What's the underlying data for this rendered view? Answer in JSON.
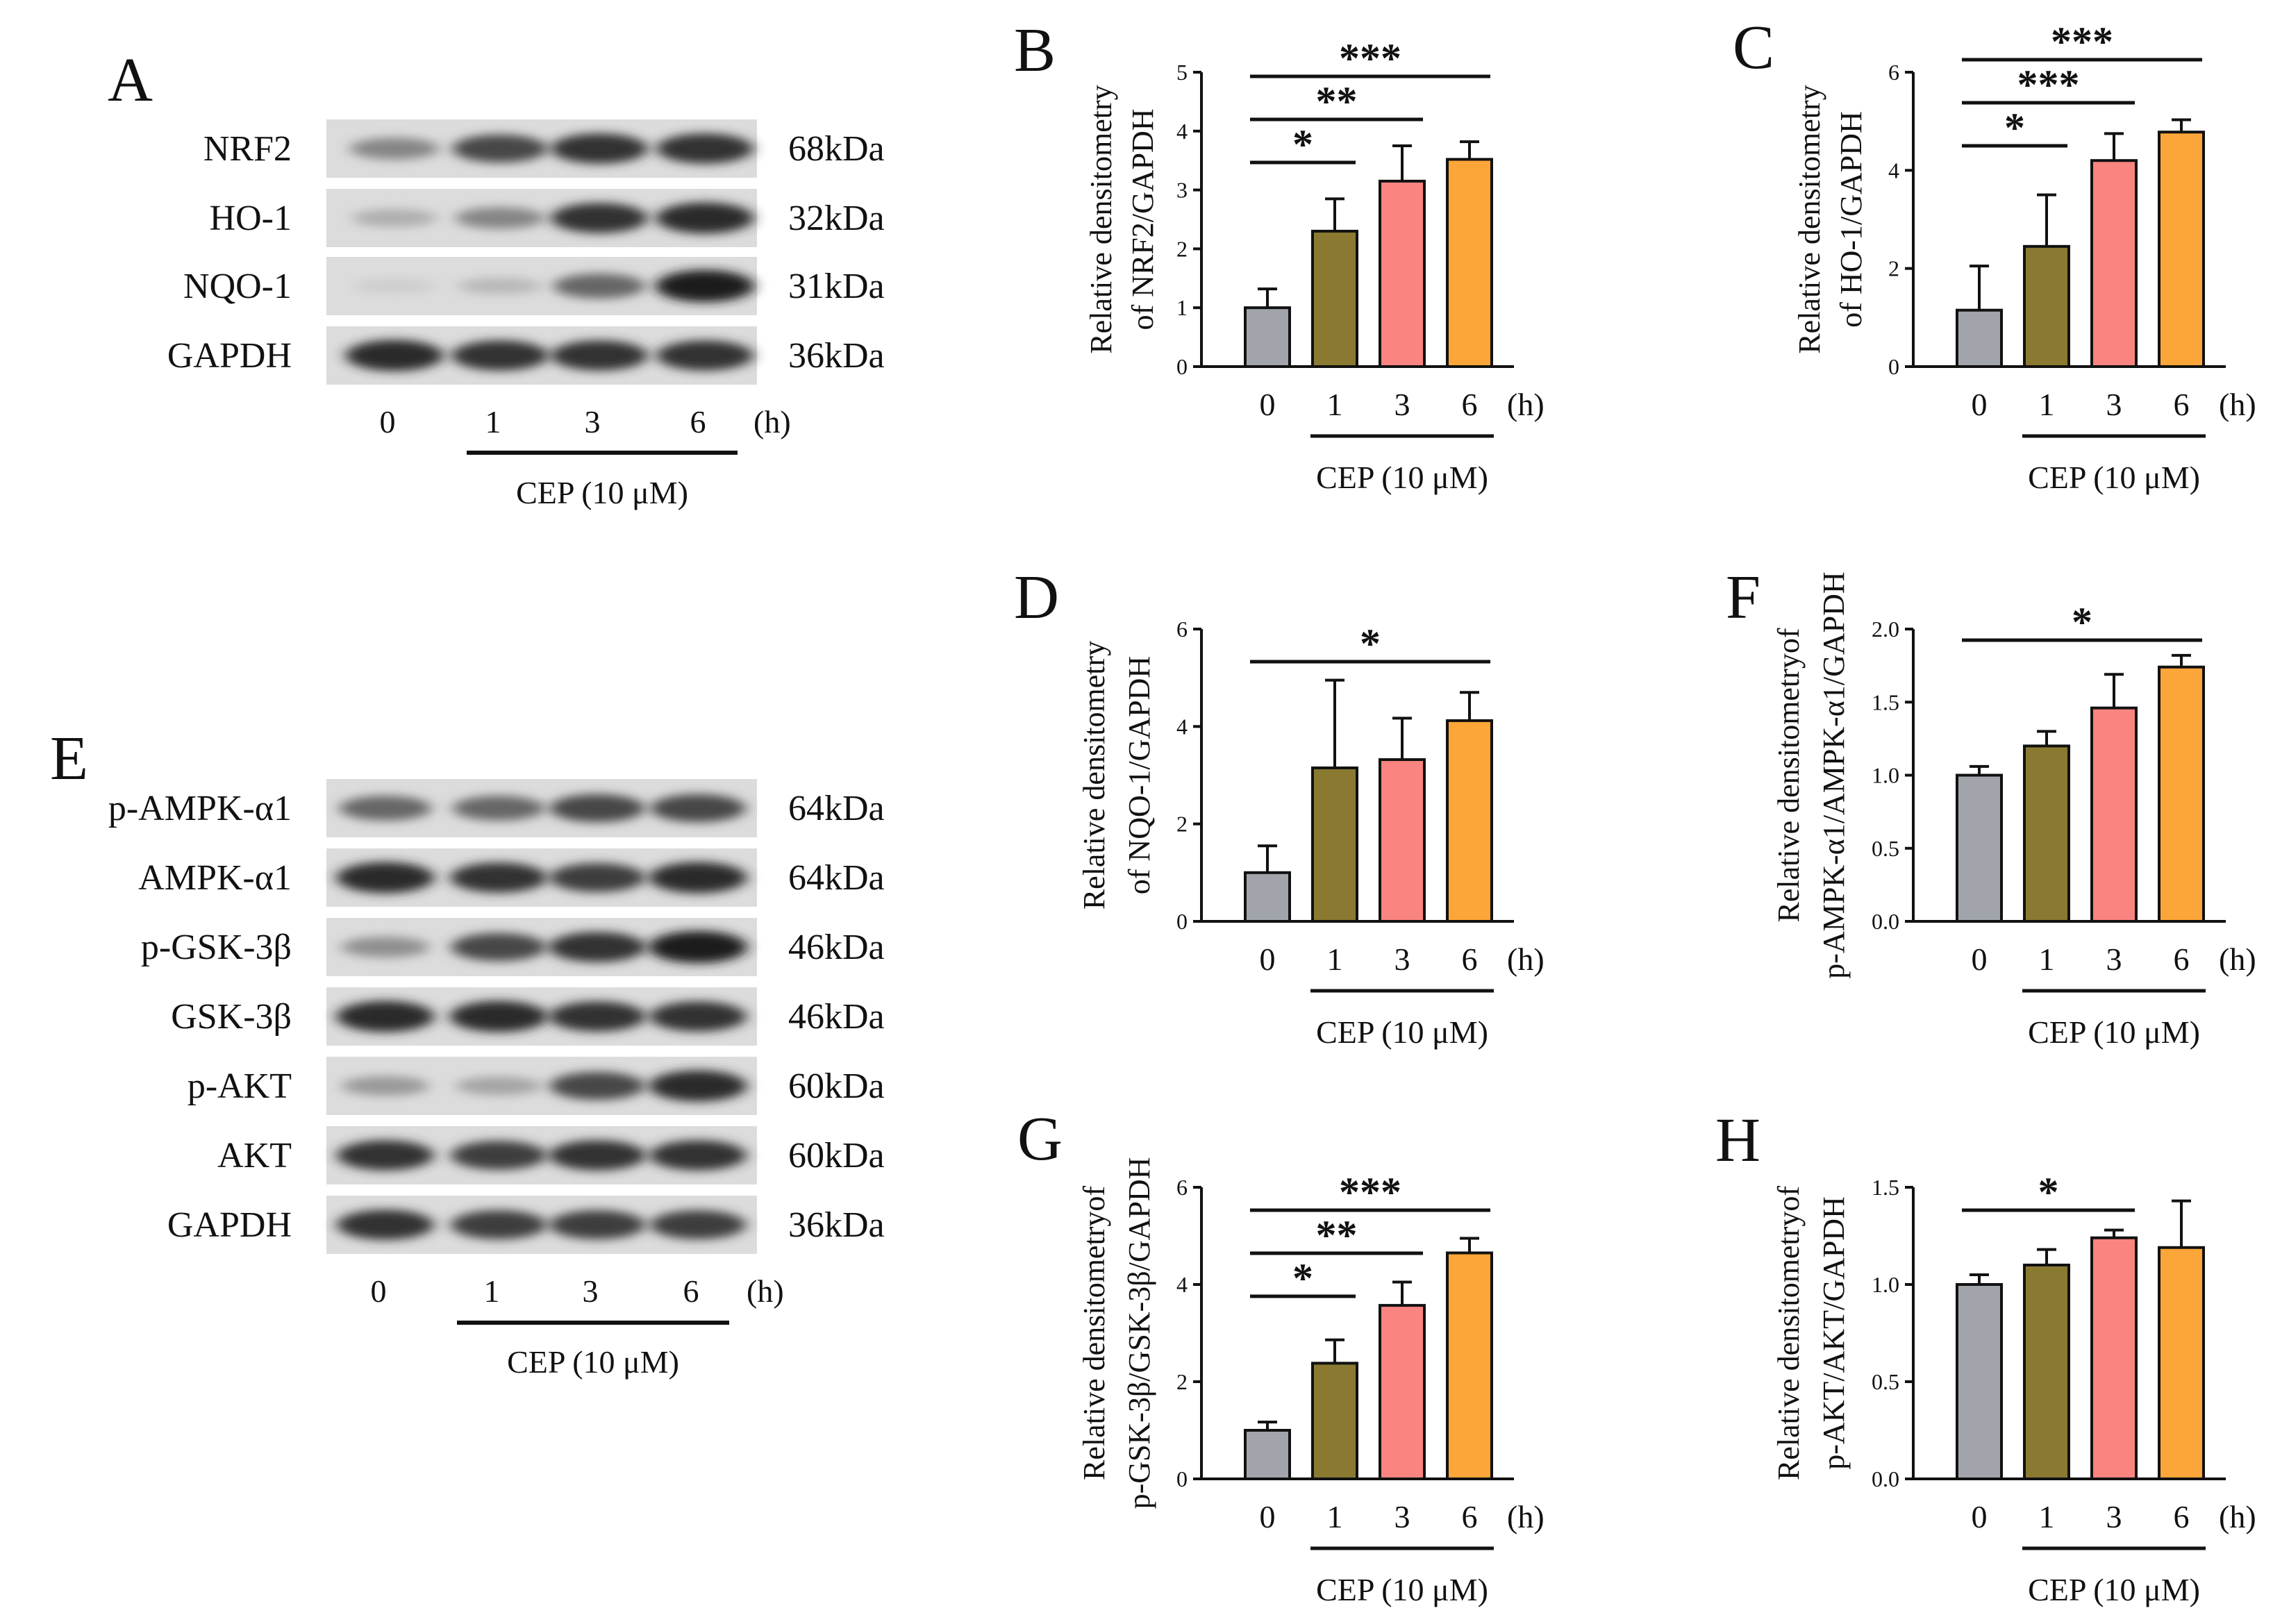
{
  "colors": {
    "bars": [
      "#a1a5ab",
      "#8a7a31",
      "#f98480",
      "#fca538"
    ],
    "band": "#141414",
    "axis": "#111111"
  },
  "blots": [
    {
      "panel": "A",
      "rows": [
        {
          "label": "NRF2",
          "kda": "68kDa",
          "intensity": [
            0.45,
            0.75,
            0.85,
            0.85
          ]
        },
        {
          "label": "HO-1",
          "kda": "32kDa",
          "intensity": [
            0.25,
            0.45,
            0.85,
            0.9
          ]
        },
        {
          "label": "NQO-1",
          "kda": "31kDa",
          "intensity": [
            0.1,
            0.2,
            0.6,
            0.95
          ]
        },
        {
          "label": "GAPDH",
          "kda": "36kDa",
          "intensity": [
            0.9,
            0.85,
            0.85,
            0.85
          ]
        }
      ],
      "lanes": [
        "0",
        "1",
        "3",
        "6"
      ],
      "unit": "(h)",
      "treatment": "CEP (10 μM)"
    },
    {
      "panel": "E",
      "rows": [
        {
          "label": "p-AMPK-α1",
          "kda": "64kDa",
          "intensity": [
            0.6,
            0.6,
            0.75,
            0.75
          ]
        },
        {
          "label": "AMPK-α1",
          "kda": "64kDa",
          "intensity": [
            0.9,
            0.85,
            0.8,
            0.9
          ]
        },
        {
          "label": "p-GSK-3β",
          "kda": "46kDa",
          "intensity": [
            0.4,
            0.75,
            0.85,
            0.95
          ]
        },
        {
          "label": "GSK-3β",
          "kda": "46kDa",
          "intensity": [
            0.9,
            0.9,
            0.85,
            0.85
          ]
        },
        {
          "label": "p-AKT",
          "kda": "60kDa",
          "intensity": [
            0.35,
            0.3,
            0.75,
            0.9
          ]
        },
        {
          "label": "AKT",
          "kda": "60kDa",
          "intensity": [
            0.85,
            0.8,
            0.85,
            0.85
          ]
        },
        {
          "label": "GAPDH",
          "kda": "36kDa",
          "intensity": [
            0.85,
            0.8,
            0.8,
            0.8
          ]
        }
      ],
      "lanes": [
        "0",
        "1",
        "3",
        "6"
      ],
      "unit": "(h)",
      "treatment": "CEP (10 μM)"
    }
  ],
  "chart_data": [
    {
      "panel": "B",
      "type": "bar",
      "categories": [
        "0",
        "1",
        "3",
        "6"
      ],
      "unit": "(h)",
      "treatment": "CEP (10 μM)",
      "values": [
        1.0,
        2.3,
        3.15,
        3.52
      ],
      "errors": [
        0.32,
        0.55,
        0.6,
        0.3
      ],
      "ylabel": [
        "Relative densitometry",
        "of NRF2/GAPDH"
      ],
      "ylim": [
        0,
        5
      ],
      "yticks": [
        "0",
        "1",
        "2",
        "3",
        "4",
        "5"
      ],
      "ytick_values": [
        0,
        1,
        2,
        3,
        4,
        5
      ],
      "significance": [
        {
          "from": 0,
          "to": 1,
          "label": "*"
        },
        {
          "from": 0,
          "to": 2,
          "label": "**"
        },
        {
          "from": 0,
          "to": 3,
          "label": "***"
        }
      ]
    },
    {
      "panel": "C",
      "type": "bar",
      "categories": [
        "0",
        "1",
        "3",
        "6"
      ],
      "unit": "(h)",
      "treatment": "CEP (10 μM)",
      "values": [
        1.15,
        2.45,
        4.2,
        4.78
      ],
      "errors": [
        0.9,
        1.05,
        0.55,
        0.25
      ],
      "ylabel": [
        "Relative densitometry",
        "of HO-1/GAPDH"
      ],
      "ylim": [
        0,
        6
      ],
      "yticks": [
        "0",
        "2",
        "4",
        "6"
      ],
      "ytick_values": [
        0,
        2,
        4,
        6
      ],
      "significance": [
        {
          "from": 0,
          "to": 1,
          "label": "*"
        },
        {
          "from": 0,
          "to": 2,
          "label": "***"
        },
        {
          "from": 0,
          "to": 3,
          "label": "***"
        }
      ]
    },
    {
      "panel": "D",
      "type": "bar",
      "categories": [
        "0",
        "1",
        "3",
        "6"
      ],
      "unit": "(h)",
      "treatment": "CEP (10 μM)",
      "values": [
        1.0,
        3.15,
        3.32,
        4.12
      ],
      "errors": [
        0.55,
        1.8,
        0.85,
        0.58
      ],
      "ylabel": [
        "Relative densitometry",
        "of NQO-1/GAPDH"
      ],
      "ylim": [
        0,
        6
      ],
      "yticks": [
        "0",
        "2",
        "4",
        "6"
      ],
      "ytick_values": [
        0,
        2,
        4,
        6
      ],
      "significance": [
        {
          "from": 0,
          "to": 3,
          "label": "*"
        }
      ]
    },
    {
      "panel": "F",
      "type": "bar",
      "categories": [
        "0",
        "1",
        "3",
        "6"
      ],
      "unit": "(h)",
      "treatment": "CEP (10 μM)",
      "values": [
        1.0,
        1.2,
        1.46,
        1.74
      ],
      "errors": [
        0.06,
        0.1,
        0.23,
        0.08
      ],
      "ylabel": [
        "Relative densitometryof",
        "p-AMPK-α1/AMPK-α1/GAPDH"
      ],
      "ylim": [
        0,
        2.0
      ],
      "yticks": [
        "0.0",
        "0.5",
        "1.0",
        "1.5",
        "2.0"
      ],
      "ytick_values": [
        0,
        0.5,
        1.0,
        1.5,
        2.0
      ],
      "significance": [
        {
          "from": 0,
          "to": 3,
          "label": "*"
        }
      ]
    },
    {
      "panel": "G",
      "type": "bar",
      "categories": [
        "0",
        "1",
        "3",
        "6"
      ],
      "unit": "(h)",
      "treatment": "CEP (10 μM)",
      "values": [
        1.0,
        2.38,
        3.57,
        4.65
      ],
      "errors": [
        0.17,
        0.48,
        0.48,
        0.3
      ],
      "ylabel": [
        "Relative densitometryof",
        "p-GSK-3β/GSK-3β/GAPDH"
      ],
      "ylim": [
        0,
        6
      ],
      "yticks": [
        "0",
        "2",
        "4",
        "6"
      ],
      "ytick_values": [
        0,
        2,
        4,
        6
      ],
      "significance": [
        {
          "from": 0,
          "to": 1,
          "label": "*"
        },
        {
          "from": 0,
          "to": 2,
          "label": "**"
        },
        {
          "from": 0,
          "to": 3,
          "label": "***"
        }
      ]
    },
    {
      "panel": "H",
      "type": "bar",
      "categories": [
        "0",
        "1",
        "3",
        "6"
      ],
      "unit": "(h)",
      "treatment": "CEP (10 μM)",
      "values": [
        1.0,
        1.1,
        1.24,
        1.19
      ],
      "errors": [
        0.05,
        0.08,
        0.04,
        0.24
      ],
      "ylabel": [
        "Relative densitometryof",
        "p-AKT/AKT/GAPDH"
      ],
      "ylim": [
        0,
        1.5
      ],
      "yticks": [
        "0.0",
        "0.5",
        "1.0",
        "1.5"
      ],
      "ytick_values": [
        0,
        0.5,
        1.0,
        1.5
      ],
      "significance": [
        {
          "from": 0,
          "to": 2,
          "label": "*"
        }
      ]
    }
  ]
}
